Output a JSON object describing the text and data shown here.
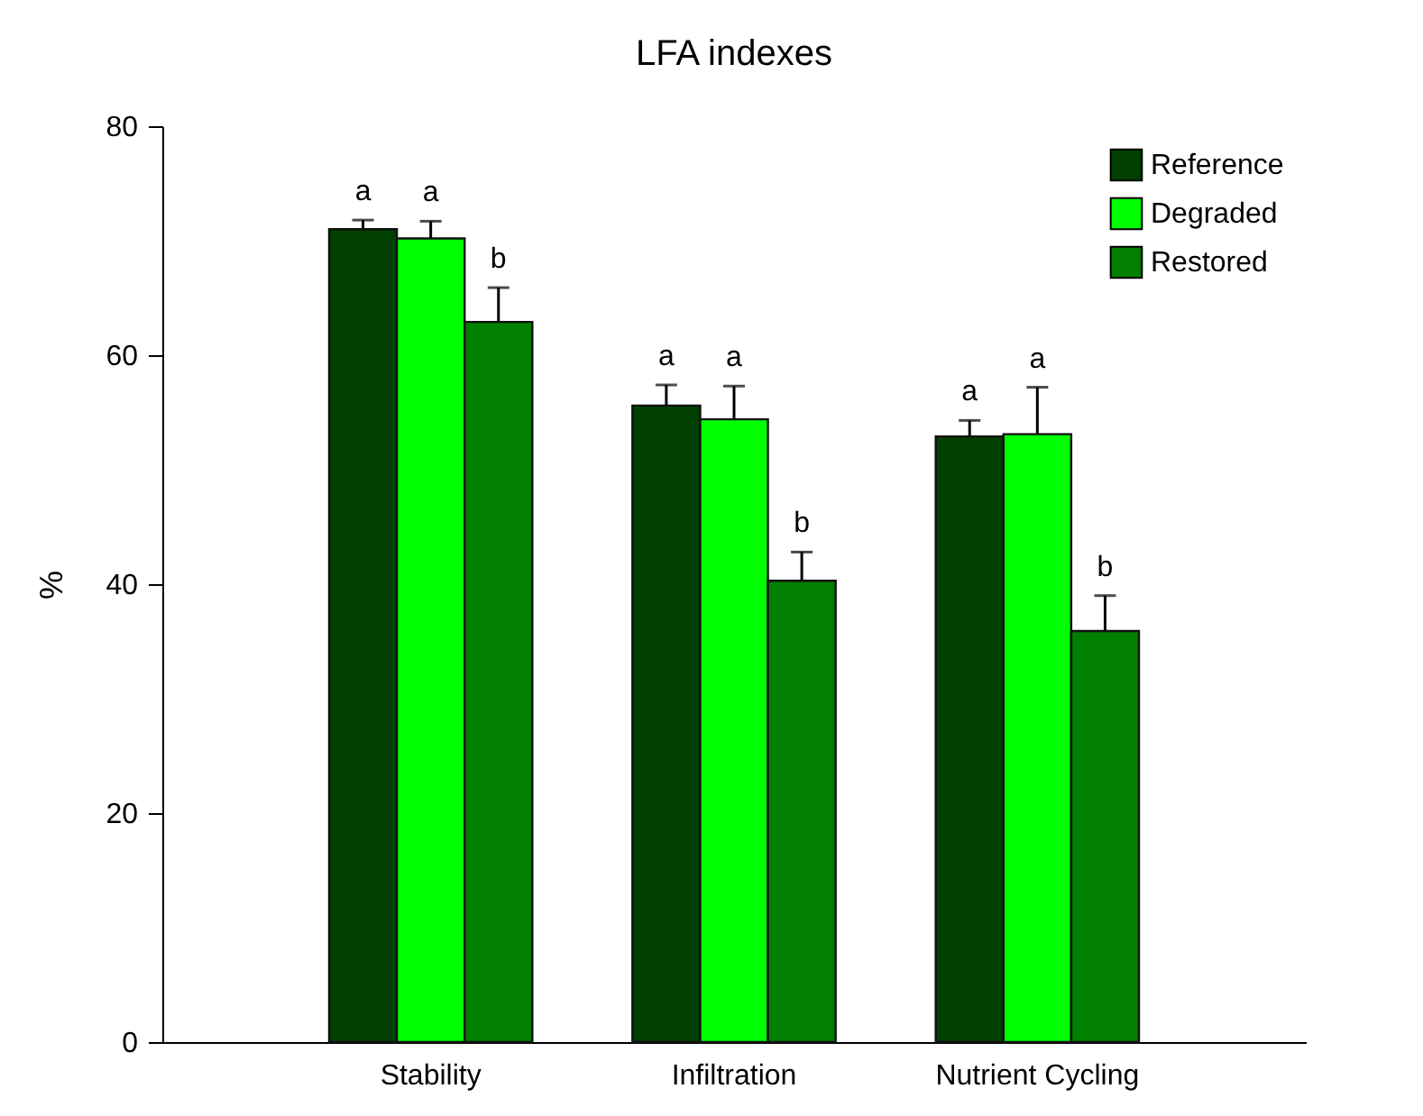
{
  "chart_data": {
    "type": "bar",
    "title": "LFA indexes",
    "ylabel": "%",
    "categories": [
      "Stability",
      "Infiltration",
      "Nutrient Cycling"
    ],
    "series": [
      {
        "name": "Reference",
        "color": "#003f00",
        "values": [
          71.0,
          55.6,
          52.9
        ],
        "errors": [
          0.8,
          1.8,
          1.4
        ],
        "value_labels": [
          "a",
          "a",
          "a"
        ]
      },
      {
        "name": "Degraded",
        "color": "#00ff00",
        "values": [
          70.2,
          54.4,
          53.1
        ],
        "errors": [
          1.5,
          2.9,
          4.1
        ],
        "value_labels": [
          "a",
          "a",
          "a"
        ]
      },
      {
        "name": "Restored",
        "color": "#007f00",
        "values": [
          62.9,
          40.3,
          35.9
        ],
        "errors": [
          3.0,
          2.5,
          3.1
        ],
        "value_labels": [
          "b",
          "b",
          "b"
        ]
      }
    ],
    "ylim": [
      0,
      80
    ],
    "yticks": [
      0,
      20,
      40,
      60,
      80
    ],
    "grid": false,
    "legend": "top right"
  }
}
